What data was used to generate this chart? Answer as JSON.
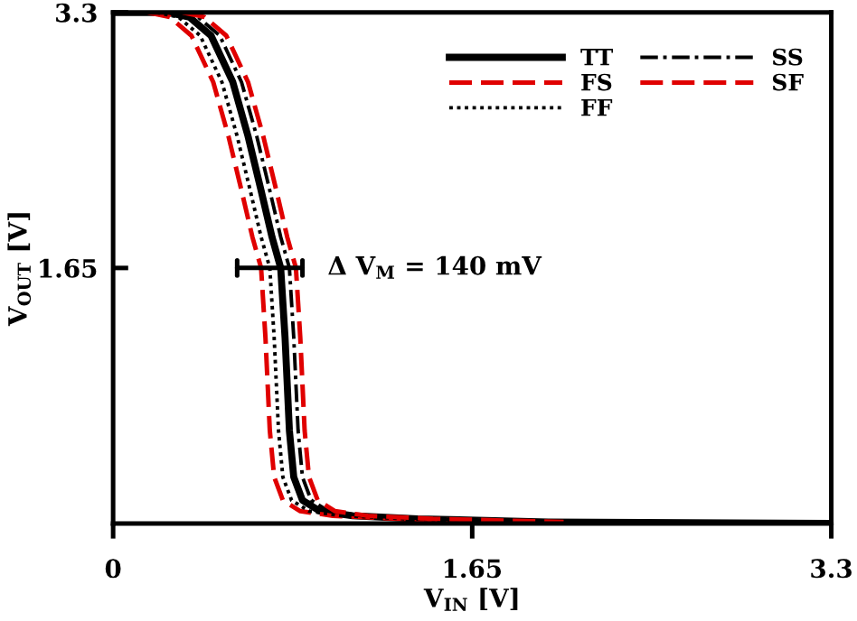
{
  "chart_data": {
    "type": "line",
    "xlabel": "V$_{IN}$ [V]",
    "ylabel": "V$_{OUT}$ [V]",
    "xlim": [
      0,
      3.3
    ],
    "ylim": [
      0,
      3.3
    ],
    "xticks": [
      0,
      1.65,
      3.3
    ],
    "yticks": [
      1.65,
      3.3
    ],
    "grid": false,
    "legend": "top right",
    "annotations": [
      {
        "text": "Δ V$_{M}$ = 140 mV",
        "x": 0.87,
        "y": 1.65
      }
    ],
    "series": [
      {
        "name": "TT",
        "color": "#000000",
        "line_style": "solid",
        "x": [
          0,
          0.25,
          0.35,
          0.45,
          0.55,
          0.62,
          0.68,
          0.73,
          0.77,
          0.79,
          0.81,
          0.83,
          0.87,
          0.95,
          1.1,
          1.4,
          2.0,
          3.3
        ],
        "values": [
          3.3,
          3.3,
          3.27,
          3.15,
          2.85,
          2.5,
          2.15,
          1.85,
          1.65,
          1.2,
          0.6,
          0.3,
          0.15,
          0.08,
          0.05,
          0.03,
          0.01,
          0
        ]
      },
      {
        "name": "FS",
        "color": "#e00000",
        "line_style": "dashed",
        "x": [
          0.16,
          0.26,
          0.36,
          0.46,
          0.53,
          0.59,
          0.64,
          0.68,
          0.7,
          0.72,
          0.74,
          0.78,
          0.86,
          1.01,
          1.31,
          1.91
        ],
        "values": [
          3.3,
          3.27,
          3.15,
          2.85,
          2.5,
          2.15,
          1.85,
          1.65,
          1.2,
          0.6,
          0.3,
          0.15,
          0.08,
          0.05,
          0.03,
          0.01
        ]
      },
      {
        "name": "FF",
        "color": "#000000",
        "line_style": "dotted",
        "x": [
          0.2,
          0.3,
          0.4,
          0.5,
          0.57,
          0.63,
          0.68,
          0.72,
          0.74,
          0.76,
          0.78,
          0.82,
          0.9,
          1.05,
          1.35,
          1.95
        ],
        "values": [
          3.3,
          3.27,
          3.15,
          2.85,
          2.5,
          2.15,
          1.85,
          1.65,
          1.2,
          0.6,
          0.3,
          0.15,
          0.08,
          0.05,
          0.03,
          0.01
        ]
      },
      {
        "name": "SS",
        "color": "#000000",
        "line_style": "dashdot",
        "x": [
          0.29,
          0.39,
          0.49,
          0.59,
          0.66,
          0.72,
          0.77,
          0.81,
          0.83,
          0.85,
          0.87,
          0.91,
          0.99,
          1.14,
          1.44,
          2.04
        ],
        "values": [
          3.3,
          3.27,
          3.15,
          2.85,
          2.5,
          2.15,
          1.85,
          1.65,
          1.2,
          0.6,
          0.3,
          0.15,
          0.08,
          0.05,
          0.03,
          0.01
        ]
      },
      {
        "name": "SF",
        "color": "#e00000",
        "line_style": "dashed",
        "x": [
          0.32,
          0.42,
          0.52,
          0.62,
          0.69,
          0.75,
          0.8,
          0.84,
          0.86,
          0.88,
          0.9,
          0.94,
          1.02,
          1.17,
          1.47,
          2.07
        ],
        "values": [
          3.3,
          3.27,
          3.15,
          2.85,
          2.5,
          2.15,
          1.85,
          1.65,
          1.2,
          0.6,
          0.3,
          0.15,
          0.08,
          0.05,
          0.03,
          0.01
        ]
      }
    ]
  }
}
